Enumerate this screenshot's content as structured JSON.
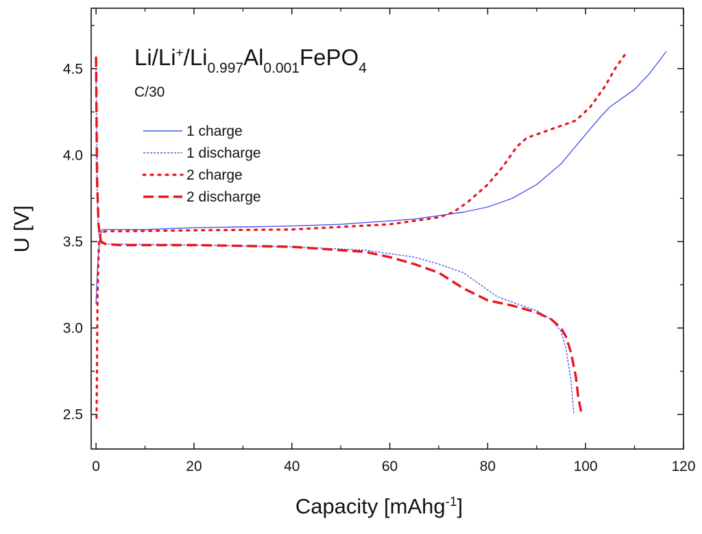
{
  "chart_data": {
    "type": "line",
    "title": "",
    "annotation": {
      "formula_parts": {
        "a": "Li/Li",
        "sup": "+",
        "b": "/Li",
        "sub1": "0.997",
        "c": "Al",
        "sub2": "0.001",
        "d": "FePO",
        "sub3": "4"
      },
      "rate": "C/30"
    },
    "xlabel": {
      "main": "Capacity [mAhg",
      "sup": "-1",
      "close": "]"
    },
    "ylabel": "U [V]",
    "xlim": [
      -1,
      120
    ],
    "ylim": [
      2.3,
      4.85
    ],
    "xticks": [
      0,
      20,
      40,
      60,
      80,
      100,
      120
    ],
    "xtick_labels": [
      "0",
      "20",
      "40",
      "60",
      "80",
      "100",
      "120"
    ],
    "yticks": [
      2.5,
      3.0,
      3.5,
      4.0,
      4.5
    ],
    "ytick_labels": [
      "2.5",
      "3.0",
      "3.5",
      "4.0",
      "4.5"
    ],
    "grid": false,
    "legend_position": "top-left",
    "series": [
      {
        "name": "1 charge",
        "color": "#4a56e8",
        "style": "solid",
        "x": [
          0.0,
          0.3,
          0.7,
          1.0,
          1.3,
          2,
          5,
          10,
          20,
          30,
          40,
          50,
          60,
          65,
          70,
          75,
          80,
          85,
          90,
          95,
          100,
          103,
          105,
          110,
          113,
          116.5
        ],
        "y": [
          3.14,
          3.35,
          3.5,
          3.55,
          3.57,
          3.57,
          3.57,
          3.57,
          3.58,
          3.585,
          3.59,
          3.6,
          3.62,
          3.63,
          3.65,
          3.67,
          3.7,
          3.75,
          3.83,
          3.95,
          4.12,
          4.22,
          4.28,
          4.38,
          4.47,
          4.6
        ]
      },
      {
        "name": "1 discharge",
        "color": "#4a56e8",
        "style": "dotted",
        "x": [
          0.0,
          0.2,
          0.5,
          1.0,
          2,
          5,
          20,
          40,
          55,
          60,
          65,
          70,
          75,
          78,
          80,
          82,
          85,
          90,
          93,
          95,
          96,
          97,
          97.6
        ],
        "y": [
          4.5,
          3.8,
          3.55,
          3.49,
          3.485,
          3.485,
          3.48,
          3.47,
          3.45,
          3.43,
          3.41,
          3.37,
          3.32,
          3.26,
          3.22,
          3.18,
          3.15,
          3.1,
          3.05,
          2.98,
          2.88,
          2.7,
          2.5
        ]
      },
      {
        "name": "2 charge",
        "color": "#e8141e",
        "style": "dotted",
        "x": [
          0.1,
          0.3,
          0.6,
          1.0,
          2,
          5,
          20,
          40,
          60,
          70,
          73,
          76,
          80,
          83,
          86,
          88,
          91,
          94,
          98,
          101,
          104,
          106,
          108.5
        ],
        "y": [
          2.48,
          3.2,
          3.5,
          3.55,
          3.56,
          3.56,
          3.565,
          3.57,
          3.6,
          3.64,
          3.67,
          3.73,
          3.83,
          3.93,
          4.05,
          4.1,
          4.13,
          4.16,
          4.2,
          4.28,
          4.4,
          4.5,
          4.6
        ]
      },
      {
        "name": "2 discharge",
        "color": "#e8141e",
        "style": "dashed",
        "x": [
          0.0,
          0.2,
          0.5,
          1.0,
          2,
          5,
          20,
          40,
          50,
          55,
          60,
          65,
          70,
          75,
          80,
          85,
          90,
          93,
          95,
          96,
          97,
          98,
          98.5,
          99.2
        ],
        "y": [
          4.57,
          3.85,
          3.6,
          3.5,
          3.485,
          3.48,
          3.48,
          3.47,
          3.45,
          3.44,
          3.41,
          3.37,
          3.32,
          3.23,
          3.16,
          3.13,
          3.09,
          3.05,
          3.0,
          2.95,
          2.86,
          2.72,
          2.6,
          2.5
        ]
      }
    ]
  }
}
